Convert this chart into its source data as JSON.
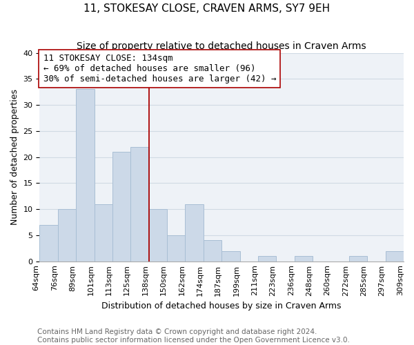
{
  "title": "11, STOKESAY CLOSE, CRAVEN ARMS, SY7 9EH",
  "subtitle": "Size of property relative to detached houses in Craven Arms",
  "xlabel": "Distribution of detached houses by size in Craven Arms",
  "ylabel": "Number of detached properties",
  "bar_color": "#ccd9e8",
  "bar_edge_color": "#a8bed4",
  "grid_color": "#d0dae4",
  "background_color": "#eef2f7",
  "bins": [
    "64sqm",
    "76sqm",
    "89sqm",
    "101sqm",
    "113sqm",
    "125sqm",
    "138sqm",
    "150sqm",
    "162sqm",
    "174sqm",
    "187sqm",
    "199sqm",
    "211sqm",
    "223sqm",
    "236sqm",
    "248sqm",
    "260sqm",
    "272sqm",
    "285sqm",
    "297sqm",
    "309sqm"
  ],
  "values": [
    7,
    10,
    33,
    11,
    21,
    22,
    10,
    5,
    11,
    4,
    2,
    0,
    1,
    0,
    1,
    0,
    0,
    1,
    0,
    2
  ],
  "ylim": [
    0,
    40
  ],
  "yticks": [
    0,
    5,
    10,
    15,
    20,
    25,
    30,
    35,
    40
  ],
  "vline_label_index": 6,
  "vline_color": "#aa0000",
  "annotation_line1": "11 STOKESAY CLOSE: 134sqm",
  "annotation_line2": "← 69% of detached houses are smaller (96)",
  "annotation_line3": "30% of semi-detached houses are larger (42) →",
  "footer_line1": "Contains HM Land Registry data © Crown copyright and database right 2024.",
  "footer_line2": "Contains public sector information licensed under the Open Government Licence v3.0.",
  "title_fontsize": 11,
  "subtitle_fontsize": 10,
  "xlabel_fontsize": 9,
  "ylabel_fontsize": 9,
  "tick_fontsize": 8,
  "annotation_fontsize": 9,
  "footer_fontsize": 7.5
}
